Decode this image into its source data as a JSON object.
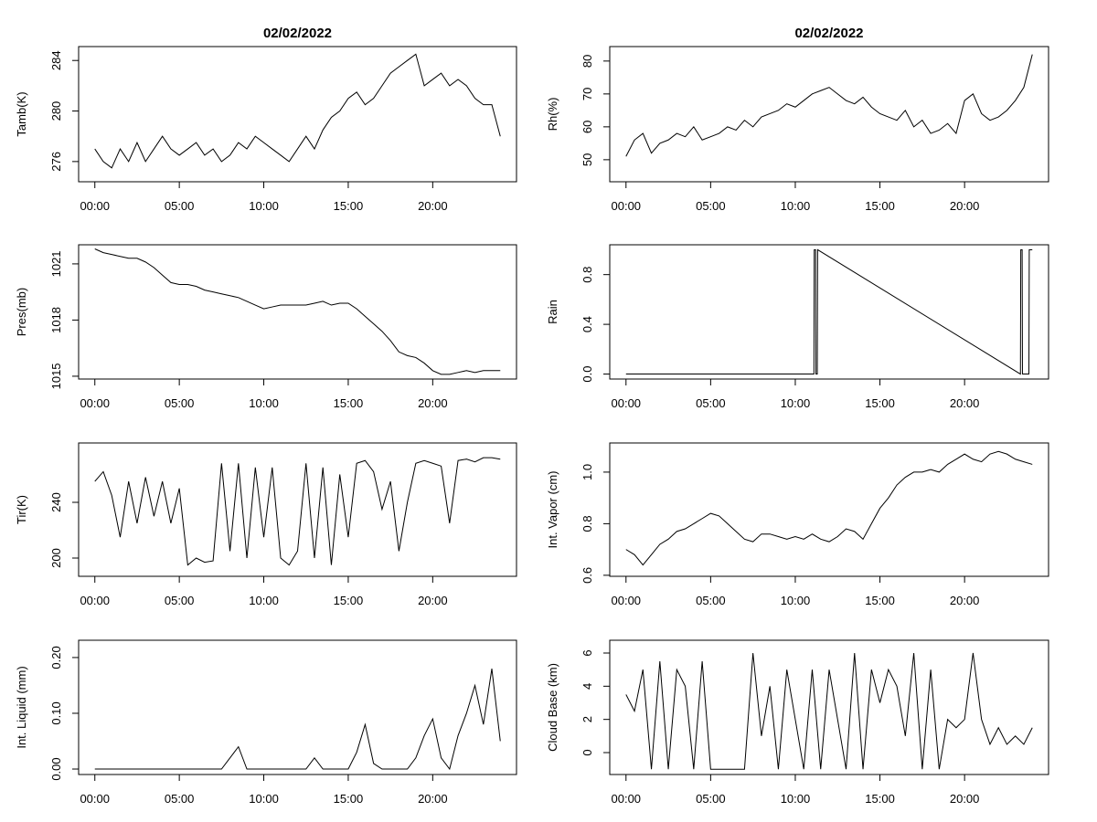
{
  "chart_data": [
    {
      "type": "line",
      "title": "02/02/2022",
      "ylabel": "Tamb(K)",
      "color": "#000000",
      "x": [
        0,
        0.5,
        1,
        1.5,
        2,
        2.5,
        3,
        3.5,
        4,
        4.5,
        5,
        5.5,
        6,
        6.5,
        7,
        7.5,
        8,
        8.5,
        9,
        9.5,
        10,
        10.5,
        11,
        11.5,
        12,
        12.5,
        13,
        13.5,
        14,
        14.5,
        15,
        15.5,
        16,
        16.5,
        17,
        17.5,
        18,
        18.5,
        19,
        19.5,
        20,
        20.5,
        21,
        21.5,
        22,
        22.5,
        23,
        23.5,
        24
      ],
      "values": [
        277,
        276,
        275.5,
        277,
        276,
        277.5,
        276,
        277,
        278,
        277,
        276.5,
        277,
        277.5,
        276.5,
        277,
        276,
        276.5,
        277.5,
        277,
        278,
        277.5,
        277,
        276.5,
        276,
        277,
        278,
        277,
        278.5,
        279.5,
        280,
        281,
        281.5,
        280.5,
        281,
        282,
        283,
        283.5,
        284,
        284.5,
        282,
        282.5,
        283,
        282,
        282.5,
        282,
        281,
        280.5,
        280.5,
        278
      ],
      "xlim": [
        -0.96,
        24.96
      ],
      "ylim": [
        274.4,
        285.1
      ],
      "xticks": [
        {
          "value": 0,
          "label": "00:00"
        },
        {
          "value": 5,
          "label": "05:00"
        },
        {
          "value": 10,
          "label": "10:00"
        },
        {
          "value": 15,
          "label": "15:00"
        },
        {
          "value": 20,
          "label": "20:00"
        }
      ],
      "yticks": [
        276,
        280,
        284
      ]
    },
    {
      "type": "line",
      "title": "02/02/2022",
      "ylabel": "Rh(%)",
      "color": "#000000",
      "x": [
        0,
        0.5,
        1,
        1.5,
        2,
        2.5,
        3,
        3.5,
        4,
        4.5,
        5,
        5.5,
        6,
        6.5,
        7,
        7.5,
        8,
        8.5,
        9,
        9.5,
        10,
        10.5,
        11,
        11.5,
        12,
        12.5,
        13,
        13.5,
        14,
        14.5,
        15,
        15.5,
        16,
        16.5,
        17,
        17.5,
        18,
        18.5,
        19,
        19.5,
        20,
        20.5,
        21,
        21.5,
        22,
        22.5,
        23,
        23.5,
        24
      ],
      "values": [
        51,
        56,
        58,
        52,
        55,
        56,
        58,
        57,
        60,
        56,
        57,
        58,
        60,
        59,
        62,
        60,
        63,
        64,
        65,
        67,
        66,
        68,
        70,
        71,
        72,
        70,
        68,
        67,
        69,
        66,
        64,
        63,
        62,
        65,
        60,
        62,
        58,
        59,
        61,
        58,
        68,
        70,
        64,
        62,
        63,
        65,
        68,
        72,
        82
      ],
      "xlim": [
        -0.96,
        24.96
      ],
      "ylim": [
        43.3,
        84.4
      ],
      "xticks": [
        {
          "value": 0,
          "label": "00:00"
        },
        {
          "value": 5,
          "label": "05:00"
        },
        {
          "value": 10,
          "label": "10:00"
        },
        {
          "value": 15,
          "label": "15:00"
        },
        {
          "value": 20,
          "label": "20:00"
        }
      ],
      "yticks": [
        50,
        60,
        70,
        80
      ]
    },
    {
      "type": "line",
      "ylabel": "Pres(mb)",
      "color": "#000000",
      "x": [
        0,
        0.5,
        1,
        1.5,
        2,
        2.5,
        3,
        3.5,
        4,
        4.5,
        5,
        5.5,
        6,
        6.5,
        7,
        7.5,
        8,
        8.5,
        9,
        9.5,
        10,
        10.5,
        11,
        11.5,
        12,
        12.5,
        13,
        13.5,
        14,
        14.5,
        15,
        15.5,
        16,
        16.5,
        17,
        17.5,
        18,
        18.5,
        19,
        19.5,
        20,
        20.5,
        21,
        21.5,
        22,
        22.5,
        23,
        23.5,
        24
      ],
      "values": [
        1021.8,
        1021.6,
        1021.5,
        1021.4,
        1021.3,
        1021.3,
        1021.1,
        1020.8,
        1020.4,
        1020.0,
        1019.9,
        1019.9,
        1019.8,
        1019.6,
        1019.5,
        1019.4,
        1019.3,
        1019.2,
        1019.0,
        1018.8,
        1018.6,
        1018.7,
        1018.8,
        1018.8,
        1018.8,
        1018.8,
        1018.9,
        1019.0,
        1018.8,
        1018.9,
        1018.9,
        1018.6,
        1018.2,
        1017.8,
        1017.4,
        1016.9,
        1016.3,
        1016.1,
        1016.0,
        1015.7,
        1015.3,
        1015.1,
        1015.1,
        1015.2,
        1015.3,
        1015.2,
        1015.3,
        1015.3,
        1015.3
      ],
      "xlim": [
        -0.96,
        24.96
      ],
      "ylim": [
        1014.85,
        1022.02
      ],
      "xticks": [
        {
          "value": 0,
          "label": "00:00"
        },
        {
          "value": 5,
          "label": "05:00"
        },
        {
          "value": 10,
          "label": "10:00"
        },
        {
          "value": 15,
          "label": "15:00"
        },
        {
          "value": 20,
          "label": "20:00"
        }
      ],
      "yticks": [
        1015,
        1018,
        1021
      ]
    },
    {
      "type": "line",
      "ylabel": "Rain",
      "color": "#000000",
      "x": [
        0,
        11.1,
        11.12,
        11.2,
        11.22,
        11.3,
        11.32,
        23.3,
        23.32,
        23.4,
        23.42,
        23.8,
        23.82,
        24
      ],
      "values": [
        0,
        0,
        1,
        1,
        0,
        0,
        1,
        0,
        1,
        1,
        0,
        0,
        1,
        1
      ],
      "xlim": [
        -0.96,
        24.96
      ],
      "ylim": [
        -0.04,
        1.04
      ],
      "xticks": [
        {
          "value": 0,
          "label": "00:00"
        },
        {
          "value": 5,
          "label": "05:00"
        },
        {
          "value": 10,
          "label": "10:00"
        },
        {
          "value": 15,
          "label": "15:00"
        },
        {
          "value": 20,
          "label": "20:00"
        }
      ],
      "yticks": [
        {
          "value": 0,
          "label": "0.0"
        },
        0.4,
        0.8
      ]
    },
    {
      "type": "line",
      "ylabel": "Tir(K)",
      "color": "#000000",
      "x": [
        0,
        0.5,
        1,
        1.5,
        2,
        2.5,
        3,
        3.5,
        4,
        4.5,
        5,
        5.5,
        6,
        6.5,
        7,
        7.5,
        8,
        8.5,
        9,
        9.5,
        10,
        10.5,
        11,
        11.5,
        12,
        12.5,
        13,
        13.5,
        14,
        14.5,
        15,
        15.5,
        16,
        16.5,
        17,
        17.5,
        18,
        18.5,
        19,
        19.5,
        20,
        20.5,
        21,
        21.5,
        22,
        22.5,
        23,
        23.5,
        24
      ],
      "values": [
        255,
        262,
        245,
        215,
        255,
        225,
        258,
        230,
        255,
        225,
        250,
        195,
        200,
        197,
        198,
        268,
        205,
        268,
        200,
        265,
        215,
        265,
        200,
        195,
        205,
        268,
        200,
        265,
        195,
        260,
        215,
        268,
        270,
        262,
        235,
        255,
        205,
        240,
        268,
        270,
        268,
        266,
        225,
        270,
        271,
        269,
        272,
        272,
        271
      ],
      "xlim": [
        -0.96,
        24.96
      ],
      "ylim": [
        186.9,
        282.6
      ],
      "xticks": [
        {
          "value": 0,
          "label": "00:00"
        },
        {
          "value": 5,
          "label": "05:00"
        },
        {
          "value": 10,
          "label": "10:00"
        },
        {
          "value": 15,
          "label": "15:00"
        },
        {
          "value": 20,
          "label": "20:00"
        }
      ],
      "yticks": [
        200,
        240
      ]
    },
    {
      "type": "line",
      "ylabel": "Int. Vapor (cm)",
      "color": "#000000",
      "x": [
        0,
        0.5,
        1,
        1.5,
        2,
        2.5,
        3,
        3.5,
        4,
        4.5,
        5,
        5.5,
        6,
        6.5,
        7,
        7.5,
        8,
        8.5,
        9,
        9.5,
        10,
        10.5,
        11,
        11.5,
        12,
        12.5,
        13,
        13.5,
        14,
        14.5,
        15,
        15.5,
        16,
        16.5,
        17,
        17.5,
        18,
        18.5,
        19,
        19.5,
        20,
        20.5,
        21,
        21.5,
        22,
        22.5,
        23,
        23.5,
        24
      ],
      "values": [
        0.7,
        0.68,
        0.64,
        0.68,
        0.72,
        0.74,
        0.77,
        0.78,
        0.8,
        0.82,
        0.84,
        0.83,
        0.8,
        0.77,
        0.74,
        0.73,
        0.76,
        0.76,
        0.75,
        0.74,
        0.75,
        0.74,
        0.76,
        0.74,
        0.73,
        0.75,
        0.78,
        0.77,
        0.74,
        0.8,
        0.86,
        0.9,
        0.95,
        0.98,
        1.0,
        1.0,
        1.01,
        1.0,
        1.03,
        1.05,
        1.07,
        1.05,
        1.04,
        1.07,
        1.08,
        1.07,
        1.05,
        1.04,
        1.03
      ],
      "xlim": [
        -0.96,
        24.96
      ],
      "ylim": [
        0.596,
        1.113
      ],
      "xticks": [
        {
          "value": 0,
          "label": "00:00"
        },
        {
          "value": 5,
          "label": "05:00"
        },
        {
          "value": 10,
          "label": "10:00"
        },
        {
          "value": 15,
          "label": "15:00"
        },
        {
          "value": 20,
          "label": "20:00"
        }
      ],
      "yticks": [
        0.6,
        0.8,
        {
          "value": 1,
          "label": "1.0"
        }
      ]
    },
    {
      "type": "line",
      "ylabel": "Int. Liquid (mm)",
      "color": "#000000",
      "x": [
        0,
        0.5,
        1,
        1.5,
        2,
        2.5,
        3,
        3.5,
        4,
        4.5,
        5,
        5.5,
        6,
        6.5,
        7,
        7.5,
        8,
        8.5,
        9,
        9.5,
        10,
        10.5,
        11,
        11.5,
        12,
        12.5,
        13,
        13.5,
        14,
        14.5,
        15,
        15.5,
        16,
        16.5,
        17,
        17.5,
        18,
        18.5,
        19,
        19.5,
        20,
        20.5,
        21,
        21.5,
        22,
        22.5,
        23,
        23.5,
        24
      ],
      "values": [
        0,
        0,
        0,
        0,
        0,
        0,
        0,
        0,
        0,
        0,
        0,
        0,
        0,
        0,
        0,
        0,
        0.02,
        0.04,
        0,
        0,
        0,
        0,
        0,
        0,
        0,
        0,
        0.02,
        0,
        0,
        0,
        0,
        0.03,
        0.08,
        0.01,
        0,
        0,
        0,
        0,
        0.02,
        0.06,
        0.09,
        0.02,
        0,
        0.06,
        0.1,
        0.15,
        0.08,
        0.18,
        0.05
      ],
      "xlim": [
        -0.96,
        24.96
      ],
      "ylim": [
        -0.0098,
        0.231
      ],
      "xticks": [
        {
          "value": 0,
          "label": "00:00"
        },
        {
          "value": 5,
          "label": "05:00"
        },
        {
          "value": 10,
          "label": "10:00"
        },
        {
          "value": 15,
          "label": "15:00"
        },
        {
          "value": 20,
          "label": "20:00"
        }
      ],
      "yticks": [
        {
          "value": 0,
          "label": "0.00"
        },
        {
          "value": 0.1,
          "label": "0.10"
        },
        {
          "value": 0.2,
          "label": "0.20"
        }
      ]
    },
    {
      "type": "line",
      "ylabel": "Cloud Base (km)",
      "color": "#000000",
      "x": [
        0,
        0.5,
        1,
        1.5,
        2,
        2.5,
        3,
        3.5,
        4,
        4.5,
        5,
        5.5,
        6,
        6.5,
        7,
        7.5,
        8,
        8.5,
        9,
        9.5,
        10,
        10.5,
        11,
        11.5,
        12,
        12.5,
        13,
        13.5,
        14,
        14.5,
        15,
        15.5,
        16,
        16.5,
        17,
        17.5,
        18,
        18.5,
        19,
        19.5,
        20,
        20.5,
        21,
        21.5,
        22,
        22.5,
        23,
        23.5,
        24
      ],
      "values": [
        3.5,
        2.5,
        5,
        -1,
        5.5,
        -1,
        5,
        4,
        -1,
        5.5,
        -1,
        -1,
        -1,
        -1,
        -1,
        6,
        1,
        4,
        -1,
        5,
        2,
        -1,
        5,
        -1,
        5,
        2,
        -1,
        6,
        -1,
        5,
        3,
        5,
        4,
        1,
        6,
        -1,
        5,
        -1,
        2,
        1.5,
        2,
        6,
        2,
        0.5,
        1.5,
        0.5,
        1,
        0.5,
        1.5
      ],
      "xlim": [
        -0.96,
        24.96
      ],
      "ylim": [
        -1.32,
        6.77
      ],
      "xticks": [
        {
          "value": 0,
          "label": "00:00"
        },
        {
          "value": 5,
          "label": "05:00"
        },
        {
          "value": 10,
          "label": "10:00"
        },
        {
          "value": 15,
          "label": "15:00"
        },
        {
          "value": 20,
          "label": "20:00"
        }
      ],
      "yticks": [
        0,
        2,
        4,
        6
      ]
    }
  ]
}
